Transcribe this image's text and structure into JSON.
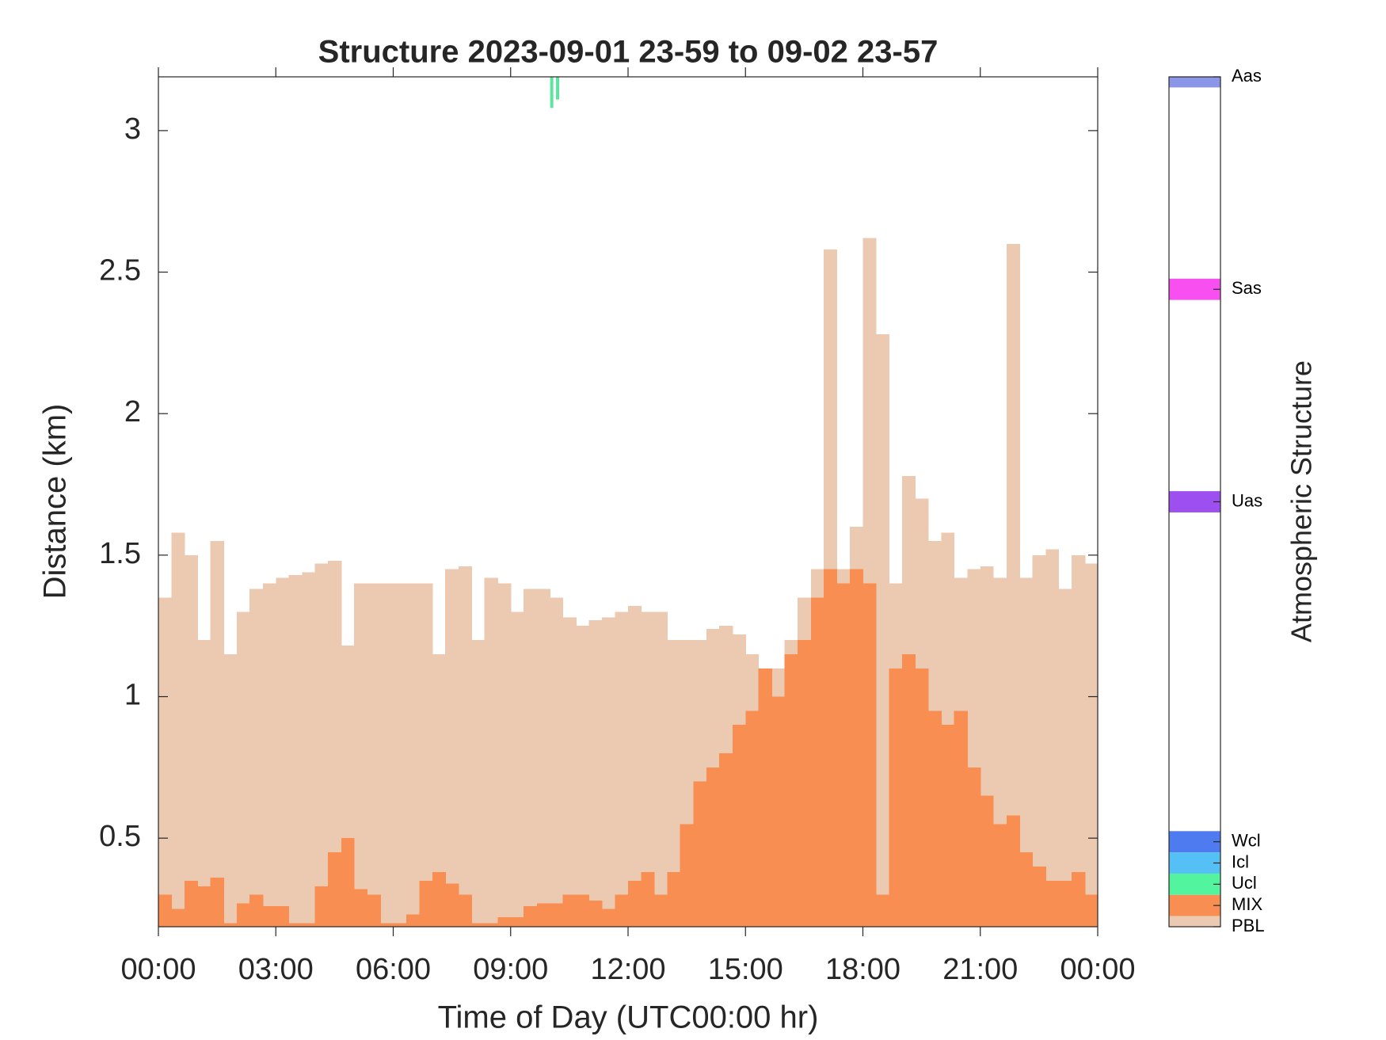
{
  "chart_data": {
    "type": "bar",
    "title": "Structure 2023-09-01 23-59 to 09-02 23-57",
    "x_label": "Time of Day (UTC00:00 hr)",
    "y_label": "Distance (km)",
    "xlim": [
      0,
      24
    ],
    "xticks": [
      {
        "value": 0,
        "label": "00:00"
      },
      {
        "value": 3,
        "label": "03:00"
      },
      {
        "value": 6,
        "label": "06:00"
      },
      {
        "value": 9,
        "label": "09:00"
      },
      {
        "value": 12,
        "label": "12:00"
      },
      {
        "value": 15,
        "label": "15:00"
      },
      {
        "value": 18,
        "label": "18:00"
      },
      {
        "value": 21,
        "label": "21:00"
      },
      {
        "value": 24,
        "label": "00:00"
      }
    ],
    "ylim": [
      0.187,
      3.19
    ],
    "yticks": [
      0.5,
      1,
      1.5,
      2,
      2.5,
      3
    ],
    "x": [
      0,
      0.33,
      0.67,
      1,
      1.33,
      1.67,
      2,
      2.33,
      2.67,
      3,
      3.33,
      3.67,
      4,
      4.33,
      4.67,
      5,
      5.33,
      5.67,
      6,
      6.33,
      6.67,
      7,
      7.33,
      7.67,
      8,
      8.33,
      8.67,
      9,
      9.33,
      9.67,
      10,
      10.33,
      10.67,
      11,
      11.33,
      11.67,
      12,
      12.33,
      12.67,
      13,
      13.33,
      13.67,
      14,
      14.33,
      14.67,
      15,
      15.33,
      15.67,
      16,
      16.33,
      16.67,
      17,
      17.33,
      17.67,
      18,
      18.33,
      18.67,
      19,
      19.33,
      19.67,
      20,
      20.33,
      20.67,
      21,
      21.33,
      21.67,
      22,
      22.33,
      22.67,
      23,
      23.33,
      23.67
    ],
    "series": [
      {
        "color": "#ecc9b1",
        "values": [
          1.35,
          1.58,
          1.5,
          1.2,
          1.55,
          1.15,
          1.3,
          1.38,
          1.4,
          1.42,
          1.43,
          1.44,
          1.47,
          1.48,
          1.18,
          1.4,
          1.4,
          1.4,
          1.4,
          1.4,
          1.4,
          1.15,
          1.45,
          1.46,
          1.2,
          1.42,
          1.4,
          1.3,
          1.38,
          1.38,
          1.35,
          1.28,
          1.25,
          1.27,
          1.28,
          1.3,
          1.32,
          1.3,
          1.3,
          1.2,
          1.2,
          1.2,
          1.24,
          1.25,
          1.22,
          1.15,
          1.0,
          1.1,
          1.2,
          1.35,
          1.45,
          2.58,
          1.45,
          1.6,
          2.62,
          2.28,
          1.4,
          1.78,
          1.7,
          1.55,
          1.58,
          1.42,
          1.45,
          1.46,
          1.42,
          2.6,
          1.42,
          1.5,
          1.52,
          1.38,
          1.5,
          1.47
        ]
      },
      {
        "color": "#f98e52",
        "values": [
          0.3,
          0.25,
          0.35,
          0.33,
          0.36,
          0.2,
          0.27,
          0.3,
          0.26,
          0.26,
          0.2,
          0.2,
          0.33,
          0.45,
          0.5,
          0.32,
          0.3,
          0.2,
          0.2,
          0.23,
          0.35,
          0.38,
          0.34,
          0.3,
          0.2,
          0.2,
          0.22,
          0.22,
          0.26,
          0.27,
          0.27,
          0.3,
          0.3,
          0.28,
          0.25,
          0.3,
          0.35,
          0.38,
          0.3,
          0.38,
          0.55,
          0.7,
          0.75,
          0.8,
          0.9,
          0.95,
          1.1,
          1.0,
          1.15,
          1.2,
          1.35,
          1.45,
          1.4,
          1.45,
          1.4,
          0.3,
          1.1,
          1.15,
          1.1,
          0.95,
          0.9,
          0.95,
          0.75,
          0.65,
          0.55,
          0.58,
          0.45,
          0.4,
          0.35,
          0.35,
          0.38,
          0.3
        ]
      }
    ],
    "ucl": {
      "color": "#5ce59e",
      "x": [
        10.05,
        10.2
      ],
      "values": [
        3.08,
        3.11
      ]
    },
    "colorbar": {
      "label": "Atmospheric Structure",
      "lim": [
        0,
        40
      ],
      "ticks": [
        {
          "value": 40,
          "label": "Aas",
          "color": "#8c96e6"
        },
        {
          "value": 30,
          "label": "Sas",
          "color": "#f74ff0"
        },
        {
          "value": 20,
          "label": "Uas",
          "color": "#9d4ff0"
        },
        {
          "value": 4,
          "label": "Wcl",
          "color": "#4f7bf0"
        },
        {
          "value": 3,
          "label": "Icl",
          "color": "#55c0f5"
        },
        {
          "value": 2,
          "label": "Ucl",
          "color": "#52f59e"
        },
        {
          "value": 1,
          "label": "MIX",
          "color": "#f98e52"
        },
        {
          "value": 0,
          "label": "PBL",
          "color": "#ecc9b1"
        }
      ]
    }
  }
}
